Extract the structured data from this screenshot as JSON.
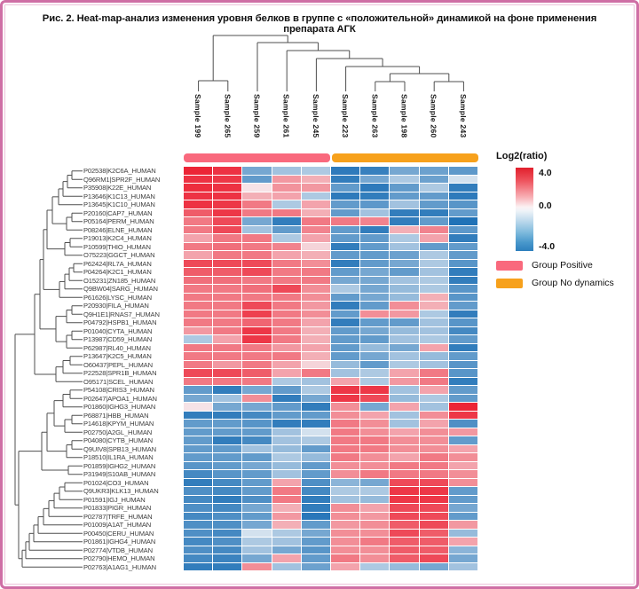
{
  "figure": {
    "title": "Рис. 2. Heat-map-анализ изменения уровня белков в группе с «положительной» динамикой на фоне применения препарата АГК"
  },
  "colors": {
    "border": "#cf6fa5",
    "group_positive": "#f9697d",
    "group_no_dynamics": "#f7a11c",
    "heat_positive_max": "#ec1c2e",
    "heat_mid": "#f7f7f9",
    "heat_negative_max": "#176cb4",
    "dendrogram": "#4f4f4f"
  },
  "legend": {
    "colorbar_title": "Log2(ratio)",
    "ticks": [
      "4.0",
      "0.0",
      "-4.0"
    ],
    "groups": [
      {
        "label": "Group Positive",
        "color": "#f9697d"
      },
      {
        "label": "Group No dynamics",
        "color": "#f7a11c"
      }
    ]
  },
  "chart_data": {
    "type": "heatmap",
    "title": "Log2(ratio)",
    "value_scale": {
      "min": -4.0,
      "max": 4.0,
      "mid": 0.0
    },
    "columns": [
      "Sample 199",
      "Sample 265",
      "Sample 259",
      "Sample 261",
      "Sample 245",
      "Sample 223",
      "Sample 263",
      "Sample 198",
      "Sample 260",
      "Sample 243"
    ],
    "column_groups": {
      "Group Positive": [
        "Sample 199",
        "Sample 265",
        "Sample 259",
        "Sample 261",
        "Sample 245"
      ],
      "Group No dynamics": [
        "Sample 223",
        "Sample 263",
        "Sample 198",
        "Sample 260",
        "Sample 243"
      ]
    },
    "rows": [
      "P02538|K2C6A_HUMAN",
      "Q96RM1|SPR2F_HUMAN",
      "P35908|K22E_HUMAN",
      "P13646|K1C13_HUMAN",
      "P13645|K1C10_HUMAN",
      "P20160|CAP7_HUMAN",
      "P05164|PERM_HUMAN",
      "P08246|ELNE_HUMAN",
      "P19013|K2C4_HUMAN",
      "P10599|THIO_HUMAN",
      "O75223|GGCT_HUMAN",
      "P62424|RL7A_HUMAN",
      "P04264|K2C1_HUMAN",
      "O15231|ZN185_HUMAN",
      "Q9BW04|SARG_HUMAN",
      "P61626|LYSC_HUMAN",
      "P20930|FILA_HUMAN",
      "Q9H1E1|RNAS7_HUMAN",
      "P04792|HSPB1_HUMAN",
      "P01040|CYTA_HUMAN",
      "P13987|CD59_HUMAN",
      "P62987|RL40_HUMAN",
      "P13647|K2C5_HUMAN",
      "O60437|PEPL_HUMAN",
      "P22528|SPR1B_HUMAN",
      "O95171|SCEL_HUMAN",
      "P54108|CRIS3_HUMAN",
      "P02647|APOA1_HUMAN",
      "P01860|IGHG3_HUMAN",
      "P68871|HBB_HUMAN",
      "P14618|KPYM_HUMAN",
      "P02750|A2GL_HUMAN",
      "P04080|CYTB_HUMAN",
      "Q9UIV8|SPB13_HUMAN",
      "P18510|IL1RA_HUMAN",
      "P01859|IGHG2_HUMAN",
      "P31949|S10AB_HUMAN",
      "P01024|CO3_HUMAN",
      "Q9UKR3|KLK13_HUMAN",
      "P01591|IGJ_HUMAN",
      "P01833|PIGR_HUMAN",
      "P02787|TRFE_HUMAN",
      "P01009|A1AT_HUMAN",
      "P00450|CERU_HUMAN",
      "P01861|IGHG4_HUMAN",
      "P02774|VTDB_HUMAN",
      "P02790|HEMO_HUMAN",
      "P02763|A1AG1_HUMAN"
    ],
    "values": [
      [
        3.8,
        3.5,
        -2.0,
        -1.2,
        -1.0,
        -3.5,
        -3.3,
        -2.0,
        -2.2,
        -2.5
      ],
      [
        3.5,
        3.4,
        -2.4,
        1.4,
        1.0,
        -3.4,
        -2.0,
        -1.0,
        -2.2,
        -0.4
      ],
      [
        3.6,
        3.5,
        0.2,
        1.5,
        1.4,
        -2.4,
        -3.5,
        -2.4,
        -1.0,
        -3.4
      ],
      [
        3.5,
        3.5,
        1.0,
        1.2,
        -1.0,
        -3.5,
        -3.4,
        -2.4,
        -2.4,
        -3.5
      ],
      [
        3.5,
        3.4,
        2.0,
        -1.0,
        1.2,
        -2.4,
        -2.5,
        -1.2,
        -2.4,
        -2.6
      ],
      [
        2.6,
        3.4,
        2.0,
        2.0,
        1.0,
        -2.4,
        -1.2,
        -3.4,
        -3.4,
        -2.4
      ],
      [
        2.0,
        3.0,
        -2.0,
        -3.4,
        2.0,
        2.0,
        1.8,
        -3.4,
        -2.4,
        -3.8
      ],
      [
        2.0,
        3.0,
        -1.2,
        -2.4,
        1.8,
        -2.4,
        -3.4,
        1.0,
        1.8,
        -2.5
      ],
      [
        1.2,
        2.0,
        2.0,
        -1.0,
        1.2,
        -2.4,
        -2.4,
        -1.0,
        1.2,
        -3.4
      ],
      [
        2.0,
        2.2,
        2.0,
        1.8,
        0.4,
        -3.4,
        -2.4,
        -1.2,
        -2.4,
        -2.4
      ],
      [
        1.2,
        2.0,
        2.0,
        1.2,
        1.0,
        -2.4,
        -2.4,
        -2.2,
        -1.0,
        -2.4
      ],
      [
        3.0,
        3.0,
        3.0,
        2.0,
        1.6,
        -3.4,
        -2.4,
        -2.0,
        -1.0,
        -2.6
      ],
      [
        2.6,
        2.6,
        3.0,
        2.0,
        2.0,
        -2.4,
        -2.0,
        -2.4,
        -1.2,
        -3.4
      ],
      [
        2.2,
        2.2,
        2.0,
        2.0,
        2.0,
        -2.0,
        -2.0,
        -1.2,
        -1.0,
        -3.4
      ],
      [
        2.0,
        2.0,
        2.2,
        3.0,
        1.6,
        -1.0,
        -2.0,
        -1.4,
        -1.0,
        -2.6
      ],
      [
        2.0,
        2.0,
        2.0,
        2.0,
        1.6,
        -2.4,
        -2.0,
        -1.4,
        1.0,
        -2.6
      ],
      [
        2.0,
        2.0,
        3.0,
        2.0,
        1.4,
        -3.4,
        -2.4,
        1.6,
        1.0,
        -2.4
      ],
      [
        2.0,
        2.0,
        3.2,
        2.0,
        1.6,
        -2.4,
        1.6,
        1.4,
        -1.0,
        -3.4
      ],
      [
        2.0,
        2.0,
        2.4,
        2.0,
        1.2,
        -3.4,
        -2.4,
        -2.4,
        -1.2,
        -2.6
      ],
      [
        1.4,
        2.0,
        3.4,
        2.0,
        1.0,
        -2.4,
        -2.0,
        -1.4,
        -1.2,
        -3.0
      ],
      [
        -1.0,
        1.2,
        3.4,
        2.0,
        1.0,
        -2.4,
        -2.4,
        -1.2,
        -1.0,
        -2.4
      ],
      [
        2.0,
        2.0,
        2.0,
        1.4,
        1.2,
        -2.4,
        -1.4,
        -2.0,
        1.2,
        -3.4
      ],
      [
        2.0,
        2.0,
        2.0,
        2.0,
        1.0,
        -2.4,
        -2.0,
        -1.2,
        -1.4,
        -2.4
      ],
      [
        2.0,
        1.4,
        2.0,
        1.2,
        0.4,
        -1.4,
        -2.4,
        -1.0,
        -1.2,
        -2.6
      ],
      [
        3.0,
        3.0,
        2.6,
        1.2,
        2.0,
        -1.2,
        -1.0,
        1.2,
        2.0,
        -2.6
      ],
      [
        2.0,
        2.0,
        2.0,
        -1.0,
        -1.2,
        1.2,
        -1.0,
        1.4,
        2.0,
        -3.4
      ],
      [
        -2.4,
        -3.4,
        -2.0,
        -2.4,
        -1.0,
        3.4,
        3.4,
        -1.2,
        1.2,
        -2.4
      ],
      [
        -2.0,
        -1.2,
        1.6,
        -3.4,
        -2.0,
        3.4,
        3.0,
        -1.4,
        -1.0,
        -2.4
      ],
      [
        0.2,
        -2.0,
        -2.0,
        -2.4,
        -3.4,
        1.6,
        -2.0,
        1.2,
        -1.2,
        3.8
      ],
      [
        -3.4,
        -3.4,
        -3.0,
        -2.4,
        -2.4,
        1.6,
        1.2,
        -1.2,
        1.6,
        3.4
      ],
      [
        -2.4,
        -2.4,
        -2.6,
        -3.4,
        -3.4,
        2.0,
        1.6,
        -1.2,
        1.2,
        -2.8
      ],
      [
        -2.4,
        -2.4,
        -2.4,
        -1.2,
        -0.4,
        2.0,
        1.6,
        1.2,
        1.6,
        1.4
      ],
      [
        -2.4,
        -3.4,
        -3.0,
        -1.2,
        -1.0,
        2.0,
        2.0,
        1.6,
        1.6,
        -2.4
      ],
      [
        -2.4,
        -2.4,
        -1.2,
        -1.4,
        -2.4,
        2.0,
        2.0,
        1.6,
        1.6,
        1.2
      ],
      [
        -2.4,
        -2.4,
        -2.4,
        -1.0,
        -1.4,
        2.0,
        1.6,
        1.2,
        2.0,
        1.6
      ],
      [
        -2.6,
        -2.4,
        -2.0,
        -1.4,
        -2.4,
        1.6,
        1.6,
        2.0,
        2.0,
        1.2
      ],
      [
        -3.0,
        -2.6,
        -2.4,
        -1.2,
        -2.4,
        1.6,
        2.0,
        2.0,
        2.0,
        1.6
      ],
      [
        -3.4,
        -3.0,
        -2.4,
        1.2,
        -2.8,
        -1.6,
        -2.0,
        3.0,
        3.0,
        1.6
      ],
      [
        -2.8,
        -3.0,
        -2.4,
        2.0,
        -3.0,
        -1.0,
        -1.0,
        3.4,
        3.4,
        -2.4
      ],
      [
        -3.0,
        -3.4,
        -2.8,
        2.0,
        -3.4,
        -1.2,
        -1.4,
        3.4,
        3.4,
        -2.4
      ],
      [
        -2.8,
        -3.0,
        -2.0,
        1.0,
        -3.4,
        1.6,
        1.2,
        3.0,
        3.0,
        -2.0
      ],
      [
        -3.0,
        -2.8,
        -2.4,
        1.4,
        -3.6,
        1.6,
        1.4,
        3.0,
        3.0,
        -2.4
      ],
      [
        -2.8,
        -2.8,
        -2.0,
        1.0,
        -2.4,
        1.4,
        1.6,
        2.6,
        3.0,
        1.4
      ],
      [
        -2.8,
        -3.0,
        -0.4,
        -1.0,
        -2.0,
        1.6,
        1.6,
        3.0,
        2.6,
        -1.4
      ],
      [
        -3.0,
        -2.8,
        -1.0,
        -1.2,
        -2.4,
        1.6,
        2.0,
        2.6,
        2.6,
        1.2
      ],
      [
        -2.8,
        -3.0,
        -1.2,
        -2.0,
        -2.6,
        1.6,
        1.6,
        2.6,
        2.6,
        -1.6
      ],
      [
        -3.0,
        -3.2,
        -2.0,
        1.2,
        -2.4,
        2.0,
        1.6,
        2.6,
        3.0,
        -2.0
      ],
      [
        -3.4,
        -3.4,
        1.6,
        -1.2,
        -2.2,
        1.2,
        -1.0,
        -1.4,
        -2.0,
        -1.2
      ]
    ]
  }
}
